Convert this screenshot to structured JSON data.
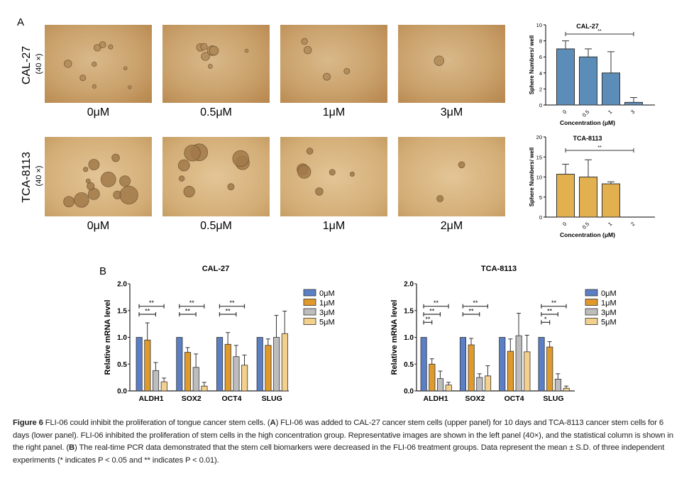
{
  "panel_a": {
    "label": "A",
    "rows": [
      {
        "cell_line": "CAL-27",
        "magnification": "(40 ×)",
        "concentrations": [
          "0μM",
          "0.5μM",
          "1μM",
          "3μM"
        ]
      },
      {
        "cell_line": "TCA-8113",
        "magnification": "(40 ×)",
        "concentrations": [
          "0μM",
          "0.5μM",
          "1μM",
          "2μM"
        ]
      }
    ]
  },
  "panel_b": {
    "label": "B"
  },
  "chart_data": [
    {
      "type": "bar",
      "title": "CAL-27",
      "xlabel": "Concentration (μM)",
      "ylabel": "Sphere Numbers/ well",
      "categories": [
        "0",
        "0.5",
        "1",
        "3"
      ],
      "values": [
        7,
        6,
        4,
        0.33
      ],
      "errors": [
        1,
        1,
        2.65,
        0.6
      ],
      "ylim": [
        0,
        10
      ],
      "yticks": [
        "0",
        "2",
        "4",
        "6",
        "8",
        "10"
      ],
      "color": "#5b8db8",
      "significance": [
        {
          "from": "0",
          "to": "3",
          "label": "**"
        }
      ]
    },
    {
      "type": "bar",
      "title": "TCA-8113",
      "xlabel": "Concentration (μM)",
      "ylabel": "Sphere Numbers/ well",
      "categories": [
        "0",
        "0.5",
        "1",
        "2"
      ],
      "values": [
        10.7,
        10,
        8.3,
        0
      ],
      "errors": [
        2.5,
        4.3,
        0.5,
        0
      ],
      "ylim": [
        0,
        20
      ],
      "yticks": [
        "0",
        "5",
        "10",
        "15",
        "20"
      ],
      "color": "#e3b050",
      "significance": [
        {
          "from": "0",
          "to": "2",
          "label": "**"
        }
      ]
    },
    {
      "type": "bar",
      "title": "CAL-27",
      "ylabel": "Relative mRNA level",
      "categories": [
        "ALDH1",
        "SOX2",
        "OCT4",
        "SLUG"
      ],
      "ylim": [
        0,
        2.0
      ],
      "yticks": [
        "0.0",
        "0.5",
        "1.0",
        "1.5",
        "2.0"
      ],
      "legend": "right",
      "series": [
        {
          "name": "0μM",
          "color": "#5b7fc4",
          "values": [
            1,
            1,
            1,
            1
          ],
          "errors": [
            0,
            0,
            0,
            0
          ]
        },
        {
          "name": "1μM",
          "color": "#e09a2c",
          "values": [
            0.95,
            0.72,
            0.87,
            0.85
          ],
          "errors": [
            0.32,
            0.09,
            0.22,
            0.12
          ]
        },
        {
          "name": "3μM",
          "color": "#bdbdbd",
          "values": [
            0.38,
            0.44,
            0.64,
            1.0
          ],
          "errors": [
            0.15,
            0.25,
            0.21,
            0.41
          ]
        },
        {
          "name": "5μM",
          "color": "#f3d08c",
          "values": [
            0.17,
            0.09,
            0.48,
            1.07
          ],
          "errors": [
            0.07,
            0.07,
            0.19,
            0.42
          ]
        }
      ],
      "significance": [
        {
          "category": "ALDH1",
          "from": "0μM",
          "to": "5μM",
          "label": "**"
        },
        {
          "category": "ALDH1",
          "from": "0μM",
          "to": "3μM",
          "label": "**"
        },
        {
          "category": "SOX2",
          "from": "0μM",
          "to": "5μM",
          "label": "**"
        },
        {
          "category": "SOX2",
          "from": "0μM",
          "to": "3μM",
          "label": "**"
        },
        {
          "category": "OCT4",
          "from": "0μM",
          "to": "5μM",
          "label": "**"
        },
        {
          "category": "OCT4",
          "from": "0μM",
          "to": "3μM",
          "label": "**"
        }
      ]
    },
    {
      "type": "bar",
      "title": "TCA-8113",
      "ylabel": "Relative mRNA level",
      "categories": [
        "ALDH1",
        "SOX2",
        "OCT4",
        "SLUG"
      ],
      "ylim": [
        0,
        2.0
      ],
      "yticks": [
        "0.0",
        "0.5",
        "1.0",
        "1.5",
        "2.0"
      ],
      "legend": "right",
      "series": [
        {
          "name": "0μM",
          "color": "#5b7fc4",
          "values": [
            1,
            1,
            1,
            1
          ],
          "errors": [
            0,
            0,
            0,
            0
          ]
        },
        {
          "name": "1μM",
          "color": "#e09a2c",
          "values": [
            0.5,
            0.86,
            0.74,
            0.82
          ],
          "errors": [
            0.1,
            0.12,
            0.23,
            0.1
          ]
        },
        {
          "name": "3μM",
          "color": "#bdbdbd",
          "values": [
            0.23,
            0.25,
            1.03,
            0.22
          ],
          "errors": [
            0.14,
            0.07,
            0.42,
            0.1
          ]
        },
        {
          "name": "5μM",
          "color": "#f3d08c",
          "values": [
            0.11,
            0.28,
            0.73,
            0.05
          ],
          "errors": [
            0.05,
            0.19,
            0.31,
            0.04
          ]
        }
      ],
      "significance": [
        {
          "category": "ALDH1",
          "from": "0μM",
          "to": "5μM",
          "label": "**"
        },
        {
          "category": "ALDH1",
          "from": "0μM",
          "to": "3μM",
          "label": "**"
        },
        {
          "category": "ALDH1",
          "from": "0μM",
          "to": "1μM",
          "label": "**"
        },
        {
          "category": "SOX2",
          "from": "0μM",
          "to": "5μM",
          "label": "**"
        },
        {
          "category": "SOX2",
          "from": "0μM",
          "to": "3μM",
          "label": "**"
        },
        {
          "category": "SLUG",
          "from": "0μM",
          "to": "5μM",
          "label": "**"
        },
        {
          "category": "SLUG",
          "from": "0μM",
          "to": "3μM",
          "label": "**"
        },
        {
          "category": "SLUG",
          "from": "0μM",
          "to": "1μM",
          "label": "*"
        }
      ]
    }
  ],
  "caption": {
    "figure_label": "Figure 6",
    "title": " FLI-06 could inhibit the proliferation of tongue cancer stem cells. (",
    "a_label": "A",
    "text_a": ") FLI-06 was added to CAL-27 cancer stem cells (upper panel) for 10 days and TCA-8113 cancer stem cells for 6 days (lower panel). FLI-06 inhibited the proliferation of stem cells in the high concentration group. Representative images are shown in the left panel (40×), and the statistical column is shown in the right panel. (",
    "b_label": "B",
    "text_b": ") The real-time PCR data demonstrated that the stem cell biomarkers were decreased in the FLI-06 treatment groups. Data represent the mean ± S.D. of three independent experiments (* indicates P < 0.05 and ** indicates P < 0.01)."
  }
}
